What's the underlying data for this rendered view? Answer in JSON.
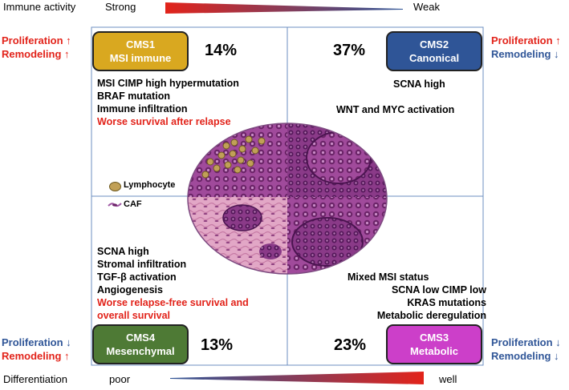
{
  "top": {
    "label": "Immune activity",
    "left": "Strong",
    "right": "Weak"
  },
  "bottom": {
    "label": "Differentiation",
    "left": "poor",
    "right": "well"
  },
  "colors": {
    "red": "#e2231a",
    "blue": "#2f5597",
    "cms1": "#d9a820",
    "cms2": "#2f5597",
    "cms3": "#cc3fc9",
    "cms4": "#4e7a35"
  },
  "side": {
    "tl": {
      "line1": "Proliferation ↑",
      "line2": "Remodeling ↑"
    },
    "tr": {
      "line1": "Proliferation ↑",
      "line2": "Remodeling ↓"
    },
    "bl": {
      "line1": "Proliferation ↓",
      "line2": "Remodeling ↑"
    },
    "br": {
      "line1": "Proliferation ↓",
      "line2": "Remodeling ↓"
    }
  },
  "cms1": {
    "name": "CMS1",
    "sub": "MSI immune",
    "pct": "14%",
    "lines": [
      "MSI CIMP high hypermutation",
      "BRAF mutation",
      "Immune infiltration"
    ],
    "red": [
      "Worse survival after relapse"
    ]
  },
  "cms2": {
    "name": "CMS2",
    "sub": "Canonical",
    "pct": "37%",
    "lines": [
      "SCNA high",
      "WNT and MYC activation"
    ]
  },
  "cms3": {
    "name": "CMS3",
    "sub": "Metabolic",
    "pct": "23%",
    "lines": [
      "Mixed MSI status",
      "SCNA low CIMP low",
      "KRAS mutations",
      "Metabolic deregulation"
    ]
  },
  "cms4": {
    "name": "CMS4",
    "sub": "Mesenchymal",
    "pct": "13%",
    "lines": [
      "SCNA high",
      "Stromal infiltration",
      "TGF-β activation",
      "Angiogenesis"
    ],
    "red": [
      "Worse relapse-free survival and",
      "overall survival"
    ]
  },
  "legend": {
    "lymphocyte": "Lymphocyte",
    "caf": "CAF"
  }
}
